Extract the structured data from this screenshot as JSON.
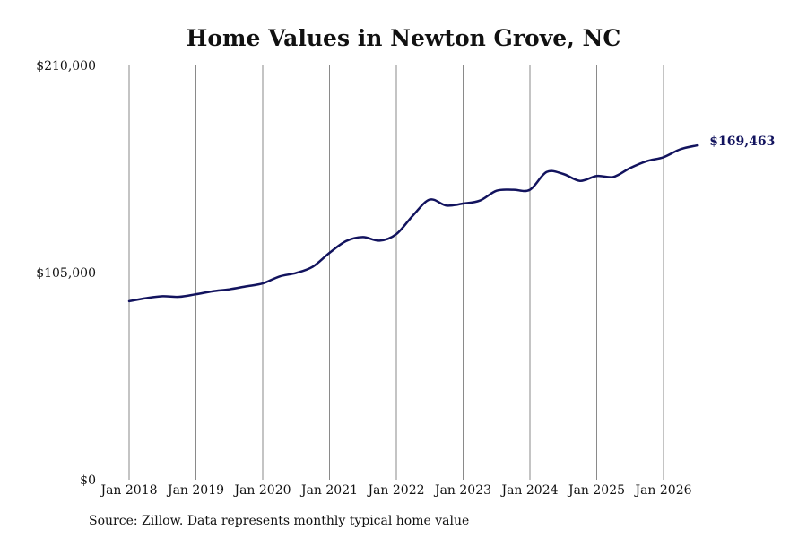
{
  "chart_data": {
    "type": "line",
    "title": "Home Values in Newton Grove, NC",
    "xlabel": "",
    "ylabel": "",
    "x_range": [
      "2018-01",
      "2026-07"
    ],
    "ylim": [
      0,
      210000
    ],
    "y_ticks": [
      0,
      105000,
      210000
    ],
    "y_tick_labels": [
      "$0",
      "$105,000",
      "$210,000"
    ],
    "x_tick_labels": [
      "Jan 2018",
      "Jan 2019",
      "Jan 2020",
      "Jan 2021",
      "Jan 2022",
      "Jan 2023",
      "Jan 2024",
      "Jan 2025",
      "Jan 2026"
    ],
    "x_tick_dates": [
      "2018-01",
      "2019-01",
      "2020-01",
      "2021-01",
      "2022-01",
      "2023-01",
      "2024-01",
      "2025-01",
      "2026-01"
    ],
    "grid": "vertical",
    "line_color": "#12135e",
    "series": [
      {
        "values": [
          [
            "2018-01",
            90500
          ],
          [
            "2018-04",
            92000
          ],
          [
            "2018-07",
            93000
          ],
          [
            "2018-10",
            92700
          ],
          [
            "2019-01",
            94000
          ],
          [
            "2019-04",
            95500
          ],
          [
            "2019-07",
            96500
          ],
          [
            "2019-10",
            98000
          ],
          [
            "2020-01",
            99500
          ],
          [
            "2020-04",
            103000
          ],
          [
            "2020-07",
            104800
          ],
          [
            "2020-10",
            108000
          ],
          [
            "2021-01",
            115000
          ],
          [
            "2021-04",
            121000
          ],
          [
            "2021-07",
            123000
          ],
          [
            "2021-10",
            121200
          ],
          [
            "2022-01",
            124500
          ],
          [
            "2022-04",
            134000
          ],
          [
            "2022-07",
            142000
          ],
          [
            "2022-10",
            139000
          ],
          [
            "2023-01",
            140000
          ],
          [
            "2023-04",
            141500
          ],
          [
            "2023-07",
            146500
          ],
          [
            "2023-10",
            147000
          ],
          [
            "2024-01",
            147000
          ],
          [
            "2024-04",
            156000
          ],
          [
            "2024-07",
            155000
          ],
          [
            "2024-10",
            151500
          ],
          [
            "2025-01",
            154000
          ],
          [
            "2025-04",
            153500
          ],
          [
            "2025-07",
            158000
          ],
          [
            "2025-10",
            161500
          ],
          [
            "2026-01",
            163500
          ],
          [
            "2026-04",
            167500
          ],
          [
            "2026-07",
            169463
          ]
        ]
      }
    ],
    "end_label": "$169,463"
  },
  "source_note": "Source: Zillow. Data represents monthly typical home value"
}
